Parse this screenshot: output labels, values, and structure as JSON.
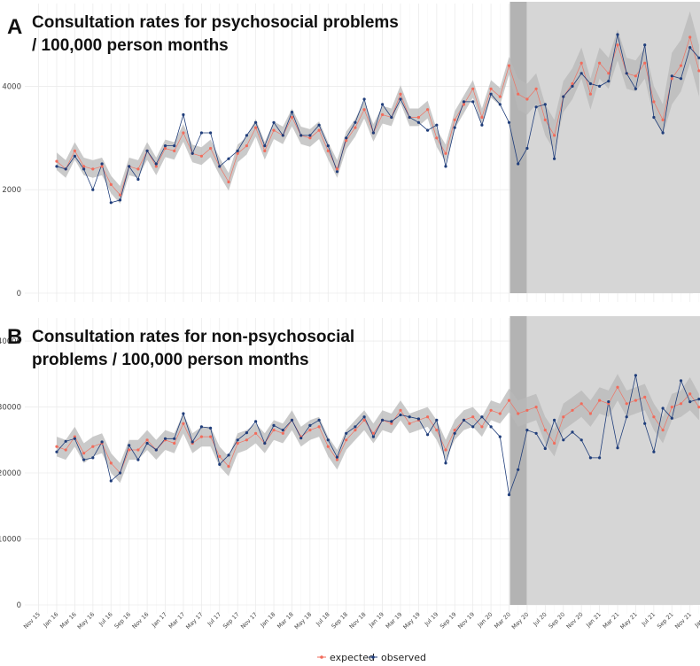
{
  "figure": {
    "legend": {
      "expected_label": "expected",
      "observed_label": "observed"
    },
    "x_tick_labels": [
      "Nov 15",
      "Jan 16",
      "Mar 16",
      "May 16",
      "Jul 16",
      "Sep 16",
      "Nov 16",
      "Jan 17",
      "Mar 17",
      "May 17",
      "Jul 17",
      "Sep 17",
      "Nov 17",
      "Jan 18",
      "Mar 18",
      "May 18",
      "Jul 18",
      "Sep 18",
      "Nov 18",
      "Jan 19",
      "Mar 19",
      "May 19",
      "Jul 19",
      "Sep 19",
      "Nov 19",
      "Jan 20",
      "Mar 20",
      "May 20",
      "Jul 20",
      "Sep 20",
      "Nov 20",
      "Jan 21",
      "Mar 21",
      "May 21",
      "Jul 21",
      "Sep 21",
      "Nov 21",
      "Jan 22"
    ],
    "colors": {
      "expected": "#f26b5b",
      "observed": "#1f3d7a",
      "ci_band": "#b8b8b8",
      "lockdown": "#b3b3b3",
      "pandemic": "#d6d6d6"
    }
  },
  "chart_data": [
    {
      "panel": "A",
      "type": "line",
      "title": "Consultation rates for psychosocial problems / 100,000 person months",
      "title_lines": [
        "Consultation rates for psychosocial problems",
        "/ 100,000 person months"
      ],
      "x": [
        "Jan 16",
        "Feb 16",
        "Mar 16",
        "Apr 16",
        "May 16",
        "Jun 16",
        "Jul 16",
        "Aug 16",
        "Sep 16",
        "Oct 16",
        "Nov 16",
        "Dec 16",
        "Jan 17",
        "Feb 17",
        "Mar 17",
        "Apr 17",
        "May 17",
        "Jun 17",
        "Jul 17",
        "Aug 17",
        "Sep 17",
        "Oct 17",
        "Nov 17",
        "Dec 17",
        "Jan 18",
        "Feb 18",
        "Mar 18",
        "Apr 18",
        "May 18",
        "Jun 18",
        "Jul 18",
        "Aug 18",
        "Sep 18",
        "Oct 18",
        "Nov 18",
        "Dec 18",
        "Jan 19",
        "Feb 19",
        "Mar 19",
        "Apr 19",
        "May 19",
        "Jun 19",
        "Jul 19",
        "Aug 19",
        "Sep 19",
        "Oct 19",
        "Nov 19",
        "Dec 19",
        "Jan 20",
        "Feb 20",
        "Mar 20",
        "Apr 20",
        "May 20",
        "Jun 20",
        "Jul 20",
        "Aug 20",
        "Sep 20",
        "Oct 20",
        "Nov 20",
        "Dec 20",
        "Jan 21",
        "Feb 21",
        "Mar 21",
        "Apr 21",
        "May 21",
        "Jun 21",
        "Jul 21",
        "Aug 21",
        "Sep 21",
        "Oct 21",
        "Nov 21",
        "Dec 21"
      ],
      "series": [
        {
          "name": "expected",
          "values": [
            2550,
            2400,
            2750,
            2450,
            2400,
            2450,
            2100,
            1900,
            2450,
            2400,
            2750,
            2450,
            2800,
            2750,
            3100,
            2700,
            2650,
            2800,
            2450,
            2150,
            2700,
            2850,
            3200,
            2750,
            3150,
            3050,
            3400,
            3050,
            3000,
            3150,
            2750,
            2400,
            2950,
            3200,
            3550,
            3100,
            3450,
            3400,
            3850,
            3400,
            3400,
            3550,
            3000,
            2700,
            3350,
            3650,
            3950,
            3400,
            3950,
            3800,
            4400,
            3850,
            3750,
            3950,
            3350,
            3050,
            3800,
            4050,
            4450,
            3850,
            4450,
            4250,
            4800,
            4250,
            4200,
            4450,
            3700,
            3350,
            4150,
            4400,
            4950,
            4300
          ]
        },
        {
          "name": "observed",
          "values": [
            2450,
            2400,
            2650,
            2400,
            2000,
            2500,
            1750,
            1800,
            2450,
            2200,
            2750,
            2500,
            2850,
            2850,
            3450,
            2700,
            3100,
            3100,
            2450,
            2600,
            2750,
            3050,
            3300,
            2850,
            3300,
            3050,
            3500,
            3050,
            3050,
            3250,
            2850,
            2350,
            3000,
            3300,
            3750,
            3100,
            3650,
            3400,
            3750,
            3400,
            3300,
            3150,
            3250,
            2450,
            3200,
            3700,
            3700,
            3250,
            3850,
            3650,
            3300,
            2500,
            2800,
            3600,
            3650,
            2600,
            3800,
            4000,
            4250,
            4050,
            4000,
            4100,
            5000,
            4250,
            3950,
            4800,
            3400,
            3100,
            4200,
            4150,
            4750,
            4550
          ]
        },
        {
          "name": "ci_upper",
          "values": [
            2720,
            2570,
            2920,
            2620,
            2570,
            2620,
            2270,
            2070,
            2620,
            2570,
            2920,
            2620,
            2970,
            2920,
            3270,
            2870,
            2820,
            2970,
            2620,
            2320,
            2870,
            3020,
            3370,
            2920,
            3320,
            3220,
            3570,
            3220,
            3170,
            3320,
            2920,
            2570,
            3120,
            3370,
            3720,
            3270,
            3620,
            3570,
            4020,
            3570,
            3570,
            3720,
            3170,
            2870,
            3520,
            3820,
            4120,
            3570,
            4120,
            3970,
            4570,
            4150,
            4050,
            4250,
            3650,
            3350,
            4100,
            4350,
            4750,
            4150,
            4750,
            4550,
            5100,
            4550,
            4500,
            4750,
            4000,
            3650,
            4650,
            4900,
            5450,
            4800
          ]
        },
        {
          "name": "ci_lower",
          "values": [
            2380,
            2230,
            2580,
            2280,
            2230,
            2280,
            1930,
            1730,
            2280,
            2230,
            2580,
            2280,
            2630,
            2580,
            2930,
            2530,
            2480,
            2630,
            2280,
            1980,
            2530,
            2680,
            3030,
            2580,
            2980,
            2880,
            3230,
            2880,
            2830,
            2980,
            2580,
            2230,
            2780,
            3030,
            3380,
            2930,
            3280,
            3230,
            3680,
            3230,
            3230,
            3380,
            2830,
            2530,
            3180,
            3480,
            3780,
            3230,
            3780,
            3630,
            4230,
            3550,
            3450,
            3650,
            3050,
            2750,
            3500,
            3750,
            4150,
            3550,
            4150,
            3950,
            4500,
            3950,
            3900,
            4150,
            3400,
            3050,
            3650,
            3900,
            4450,
            3800
          ]
        }
      ],
      "y_tick_values": [
        0,
        2000,
        4000
      ],
      "y_tick_labels": [
        "0",
        "2000",
        "4000"
      ],
      "ylim": [
        0,
        5600
      ],
      "shaded_regions": [
        {
          "from": "Mar 20",
          "to": "Apr 20",
          "label": "first lockdown"
        },
        {
          "from": "Apr 20",
          "to": "Dec 21",
          "label": "pandemic period"
        }
      ]
    },
    {
      "panel": "B",
      "type": "line",
      "title": "Consultation rates for non-psychosocial problems / 100,000 person months",
      "title_lines": [
        "Consultation rates for non-psychosocial",
        "problems / 100,000 person months"
      ],
      "x": [
        "Jan 16",
        "Feb 16",
        "Mar 16",
        "Apr 16",
        "May 16",
        "Jun 16",
        "Jul 16",
        "Aug 16",
        "Sep 16",
        "Oct 16",
        "Nov 16",
        "Dec 16",
        "Jan 17",
        "Feb 17",
        "Mar 17",
        "Apr 17",
        "May 17",
        "Jun 17",
        "Jul 17",
        "Aug 17",
        "Sep 17",
        "Oct 17",
        "Nov 17",
        "Dec 17",
        "Jan 18",
        "Feb 18",
        "Mar 18",
        "Apr 18",
        "May 18",
        "Jun 18",
        "Jul 18",
        "Aug 18",
        "Sep 18",
        "Oct 18",
        "Nov 18",
        "Dec 18",
        "Jan 19",
        "Feb 19",
        "Mar 19",
        "Apr 19",
        "May 19",
        "Jun 19",
        "Jul 19",
        "Aug 19",
        "Sep 19",
        "Oct 19",
        "Nov 19",
        "Dec 19",
        "Jan 20",
        "Feb 20",
        "Mar 20",
        "Apr 20",
        "May 20",
        "Jun 20",
        "Jul 20",
        "Aug 20",
        "Sep 20",
        "Oct 20",
        "Nov 20",
        "Dec 20",
        "Jan 21",
        "Feb 21",
        "Mar 21",
        "Apr 21",
        "May 21",
        "Jun 21",
        "Jul 21",
        "Aug 21",
        "Sep 21",
        "Oct 21",
        "Nov 21",
        "Dec 21"
      ],
      "series": [
        {
          "name": "expected",
          "values": [
            24000,
            23500,
            25500,
            23000,
            24000,
            24500,
            21500,
            20000,
            23500,
            23500,
            25000,
            23500,
            25000,
            24500,
            27500,
            24500,
            25500,
            25500,
            22500,
            21000,
            24500,
            25000,
            26000,
            24500,
            26500,
            26000,
            28000,
            25500,
            26500,
            27000,
            24000,
            22000,
            25000,
            26500,
            28000,
            26000,
            28000,
            27500,
            29500,
            27500,
            28000,
            28500,
            26500,
            23500,
            26500,
            28000,
            28500,
            27000,
            29500,
            29000,
            31000,
            29000,
            29500,
            30000,
            26500,
            24500,
            28500,
            29500,
            30500,
            29000,
            31000,
            30500,
            33000,
            30500,
            31000,
            31500,
            28500,
            26500,
            30000,
            30500,
            32000,
            30000
          ]
        },
        {
          "name": "observed",
          "values": [
            23200,
            24800,
            25200,
            22000,
            22300,
            24700,
            18800,
            20000,
            24200,
            22000,
            24500,
            23500,
            25200,
            25200,
            29000,
            24700,
            27000,
            26800,
            21300,
            22700,
            25000,
            26100,
            27800,
            24500,
            27200,
            26500,
            28000,
            25300,
            27200,
            28000,
            25000,
            22400,
            26000,
            27000,
            28500,
            25500,
            28000,
            27800,
            28800,
            28500,
            28200,
            25800,
            28000,
            21500,
            26000,
            28000,
            27000,
            28500,
            27000,
            25500,
            16700,
            20500,
            26500,
            26000,
            23700,
            28000,
            25000,
            26200,
            25000,
            22300,
            22300,
            30800,
            23800,
            28500,
            34800,
            27500,
            23200,
            29800,
            28300,
            34000,
            30800,
            31200
          ]
        },
        {
          "name": "ci_upper",
          "values": [
            25500,
            25000,
            27000,
            24500,
            25500,
            26000,
            23000,
            21500,
            25000,
            25000,
            26500,
            25000,
            26500,
            26000,
            29000,
            26000,
            27000,
            27000,
            24000,
            22500,
            26000,
            26500,
            27500,
            26000,
            28000,
            27500,
            29500,
            27000,
            28000,
            28500,
            25500,
            23500,
            26500,
            28000,
            29500,
            27500,
            29500,
            29000,
            31000,
            29000,
            29500,
            30000,
            28000,
            25000,
            28000,
            29500,
            30000,
            28500,
            31000,
            30500,
            32800,
            31000,
            31500,
            32000,
            28500,
            26500,
            30500,
            31500,
            32500,
            31000,
            33000,
            32500,
            35000,
            32500,
            33000,
            33500,
            30500,
            28500,
            32000,
            32500,
            34500,
            32000
          ]
        },
        {
          "name": "ci_lower",
          "values": [
            22500,
            22000,
            24000,
            21500,
            22500,
            23000,
            20000,
            18500,
            22000,
            22000,
            23500,
            22000,
            23500,
            23000,
            26000,
            23000,
            24000,
            24000,
            21000,
            19500,
            23000,
            23500,
            24500,
            23000,
            25000,
            24500,
            26500,
            24000,
            25000,
            25500,
            22500,
            20500,
            23500,
            25000,
            26500,
            24500,
            26500,
            26000,
            28000,
            26000,
            26500,
            27000,
            25000,
            22000,
            25000,
            26500,
            27000,
            25500,
            28000,
            27500,
            29200,
            27000,
            27500,
            28000,
            24500,
            22500,
            26500,
            27500,
            28500,
            27000,
            29000,
            28500,
            31000,
            28500,
            29000,
            29500,
            26500,
            24500,
            28000,
            28500,
            29500,
            28000
          ]
        }
      ],
      "y_tick_values": [
        0,
        10000,
        20000,
        30000,
        40000
      ],
      "y_tick_labels": [
        "0",
        "10000",
        "20000",
        "30000",
        "40000"
      ],
      "ylim": [
        0,
        43500
      ],
      "shaded_regions": [
        {
          "from": "Mar 20",
          "to": "Apr 20",
          "label": "first lockdown"
        },
        {
          "from": "Apr 20",
          "to": "Dec 21",
          "label": "pandemic period"
        }
      ]
    }
  ]
}
